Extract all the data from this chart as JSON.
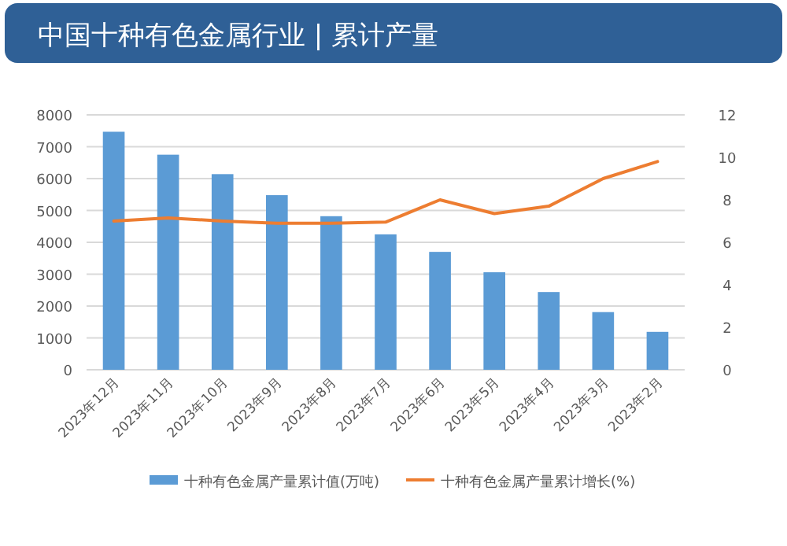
{
  "chart_data": {
    "type": "bar",
    "title": "中国十种有色金属行业 | 累计产量",
    "categories": [
      "2023年12月",
      "2023年11月",
      "2023年10月",
      "2023年9月",
      "2023年8月",
      "2023年7月",
      "2023年6月",
      "2023年5月",
      "2023年4月",
      "2023年3月",
      "2023年2月"
    ],
    "series": [
      {
        "name": "十种有色金属产量累计值(万吨)",
        "color": "#5b9bd5",
        "values": [
          7470,
          6750,
          6140,
          5480,
          4820,
          4250,
          3700,
          3060,
          2440,
          1810,
          1190
        ]
      },
      {
        "name": "十种有色金属产量累计增长(%)",
        "type": "line",
        "axis": "y2",
        "color": "#ed7d31",
        "values": [
          7.0,
          7.15,
          7.0,
          6.9,
          6.9,
          6.95,
          8.0,
          7.35,
          7.7,
          9.0,
          9.8
        ]
      }
    ],
    "ylim": [
      0,
      8000
    ],
    "yticks": [
      0,
      1000,
      2000,
      3000,
      4000,
      5000,
      6000,
      7000,
      8000
    ],
    "y2lim": [
      0,
      12
    ],
    "y2ticks": [
      0,
      2,
      4,
      6,
      8,
      10,
      12
    ],
    "grid": "y",
    "legend": "bottom"
  }
}
